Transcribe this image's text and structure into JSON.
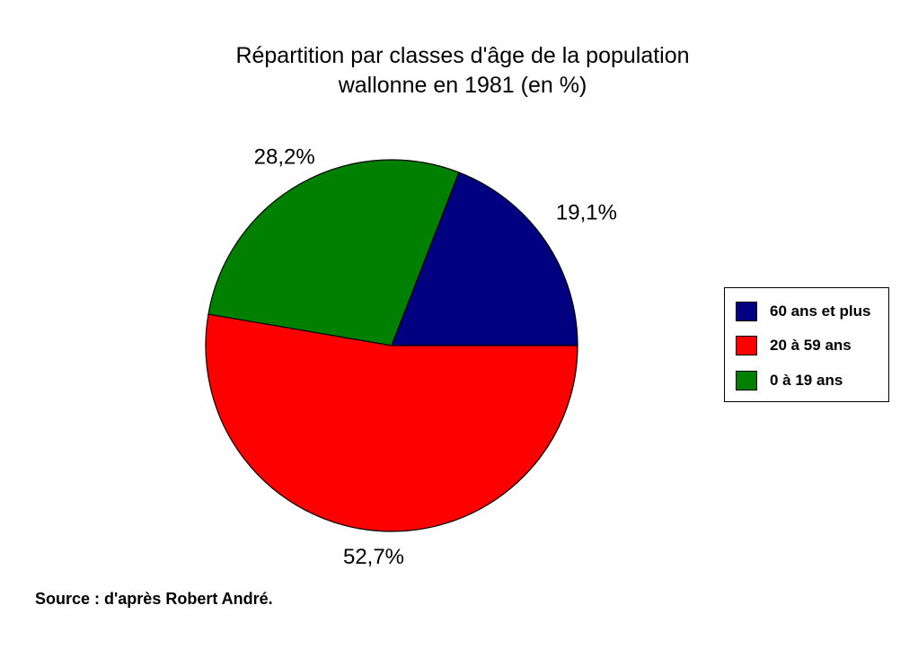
{
  "chart_data": {
    "type": "pie",
    "title_lines": [
      "Répartition par classes d'âge de la population",
      "wallonne en 1981 (en %)"
    ],
    "slices": [
      {
        "name": "60 ans et plus",
        "value": 19.1,
        "label": "19,1%",
        "color": "#000080"
      },
      {
        "name": "0 à 19 ans",
        "value": 28.2,
        "label": "28,2%",
        "color": "#008000"
      },
      {
        "name": "20 à 59 ans",
        "value": 52.7,
        "label": "52,7%",
        "color": "#ff0000"
      }
    ],
    "legend": {
      "position": "right",
      "entries": [
        {
          "name": "60 ans et plus",
          "color": "#000080"
        },
        {
          "name": "20 à 59 ans",
          "color": "#ff0000"
        },
        {
          "name": "0 à 19 ans",
          "color": "#008000"
        }
      ]
    }
  },
  "source": "Source : d'après Robert André."
}
